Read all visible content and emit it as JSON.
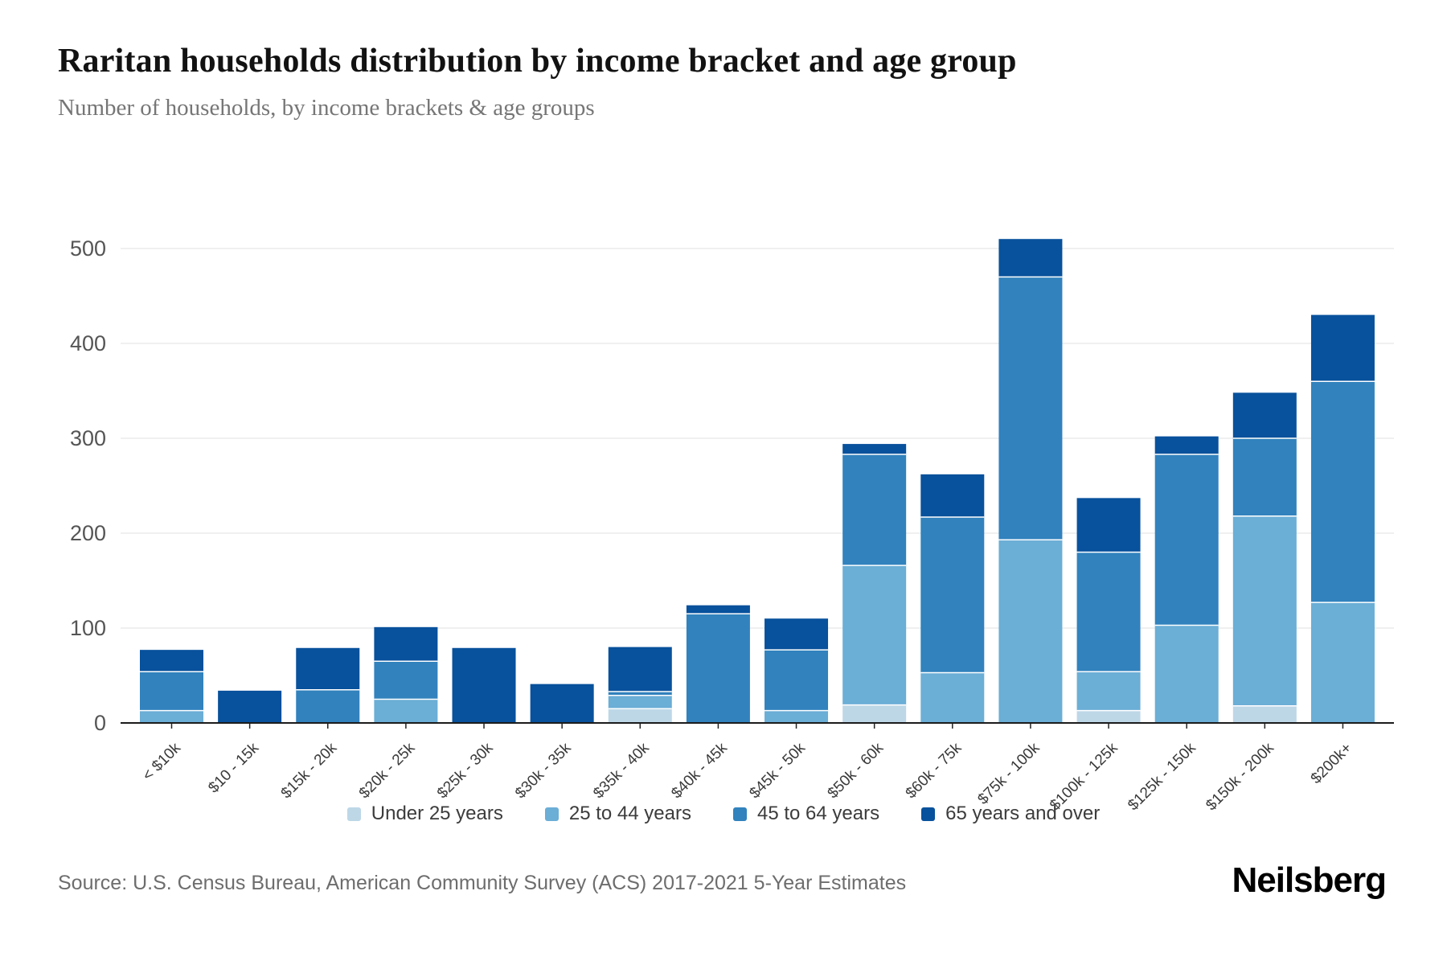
{
  "chart_data": {
    "type": "bar",
    "stacked": true,
    "title": "Raritan households distribution by income bracket and age group",
    "subtitle": "Number of households, by income brackets & age groups",
    "categories": [
      "< $10k",
      "$10 - 15k",
      "$15k - 20k",
      "$20k - 25k",
      "$25k - 30k",
      "$30k - 35k",
      "$35k - 40k",
      "$40k - 45k",
      "$45k - 50k",
      "$50k - 60k",
      "$60k - 75k",
      "$75k - 100k",
      "$100k - 125k",
      "$125k - 150k",
      "$150k - 200k",
      "$200k+"
    ],
    "series": [
      {
        "name": "Under 25 years",
        "color": "#bdd7e7",
        "values": [
          0,
          0,
          0,
          0,
          0,
          0,
          15,
          0,
          0,
          19,
          0,
          0,
          13,
          0,
          18,
          0
        ]
      },
      {
        "name": "25 to 44 years",
        "color": "#6baed6",
        "values": [
          13,
          0,
          0,
          25,
          0,
          0,
          14,
          0,
          13,
          147,
          53,
          193,
          41,
          103,
          200,
          127
        ]
      },
      {
        "name": "45 to 64 years",
        "color": "#3182bd",
        "values": [
          41,
          0,
          35,
          40,
          0,
          0,
          4,
          115,
          64,
          117,
          164,
          277,
          126,
          180,
          82,
          233
        ]
      },
      {
        "name": "65 years and over",
        "color": "#08519c",
        "values": [
          23,
          34,
          44,
          36,
          79,
          41,
          47,
          9,
          33,
          11,
          45,
          40,
          57,
          19,
          48,
          70
        ]
      }
    ],
    "totals": [
      77,
      34,
      79,
      101,
      79,
      41,
      80,
      124,
      110,
      294,
      262,
      510,
      237,
      302,
      348,
      430
    ],
    "yticks": [
      0,
      100,
      200,
      300,
      400,
      500
    ],
    "ylim": [
      0,
      540
    ],
    "xlabel": "",
    "ylabel": "",
    "grid": true,
    "legend_position": "bottom"
  },
  "footer": {
    "source": "Source: U.S. Census Bureau, American Community Survey (ACS) 2017-2021 5-Year Estimates",
    "brand": "Neilsberg"
  }
}
